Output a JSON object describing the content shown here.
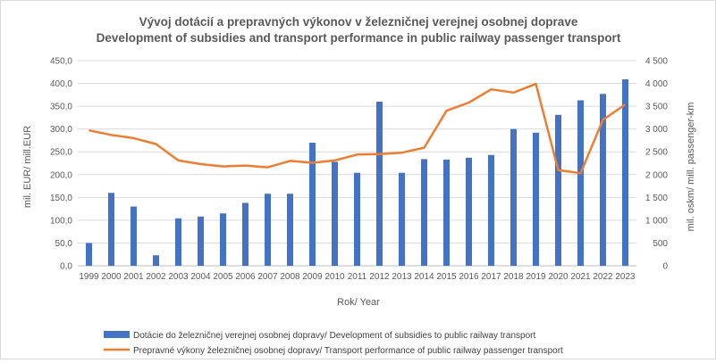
{
  "chart_data": {
    "type": "bar+line",
    "title": "Vývoj dotácií a prepravných výkonov v železničnej verejnej osobnej doprave",
    "subtitle": "Development of subsidies and transport performance in public railway passenger transport",
    "xlabel": "Rok/ Year",
    "ylabel_left": "mil. EUR/ mill.EUR",
    "ylabel_right": "mil. oskm/ mill. passenger-km",
    "ylim_left": [
      0,
      450
    ],
    "ylim_right": [
      0,
      4500
    ],
    "left_tick_labels": [
      "0,0",
      "50,0",
      "100,0",
      "150,0",
      "200,0",
      "250,0",
      "300,0",
      "350,0",
      "400,0",
      "450,0"
    ],
    "right_tick_labels": [
      "0",
      "500",
      "1 000",
      "1 500",
      "2 000",
      "2 500",
      "3 000",
      "3 500",
      "4 000",
      "4 500"
    ],
    "grid": true,
    "legend_position": "bottom",
    "categories": [
      "1999",
      "2000",
      "2001",
      "2002",
      "2003",
      "2004",
      "2005",
      "2006",
      "2007",
      "2008",
      "2009",
      "2010",
      "2011",
      "2012",
      "2013",
      "2014",
      "2015",
      "2016",
      "2017",
      "2018",
      "2019",
      "2020",
      "2021",
      "2022",
      "2023"
    ],
    "series": [
      {
        "name": "Dotácie do železničnej verejnej osobnej dopravy/ Development of subsidies to public railway transport",
        "type": "bar",
        "axis": "left",
        "color": "#4472C4",
        "values": [
          50,
          160,
          130,
          23,
          104,
          108,
          115,
          138,
          158,
          158,
          270,
          228,
          204,
          360,
          204,
          234,
          233,
          237,
          243,
          300,
          292,
          331,
          363,
          377,
          409
        ]
      },
      {
        "name": "Prepravné výkony železničnej osobnej dopravy/ Transport performance of public railway passenger transport",
        "type": "line",
        "axis": "right",
        "color": "#ED7D31",
        "values": [
          2970,
          2870,
          2800,
          2670,
          2310,
          2230,
          2180,
          2200,
          2160,
          2300,
          2260,
          2310,
          2440,
          2450,
          2480,
          2590,
          3400,
          3580,
          3870,
          3800,
          3990,
          2100,
          2030,
          3200,
          3540
        ]
      }
    ]
  }
}
